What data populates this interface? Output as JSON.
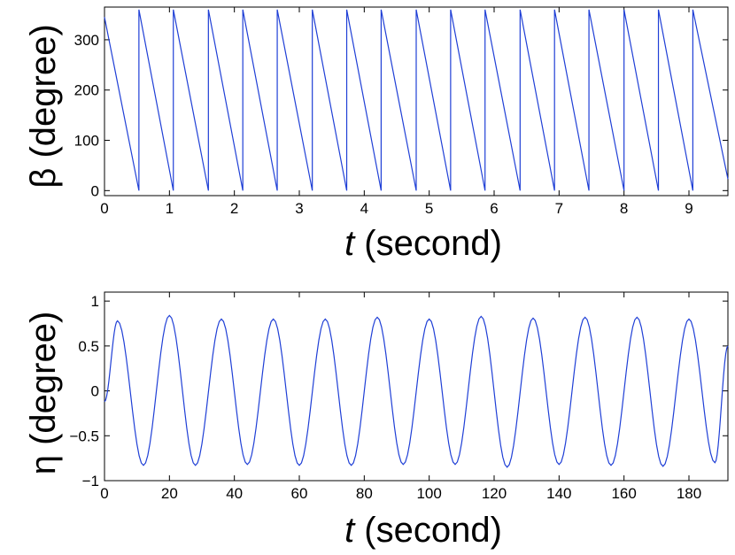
{
  "chart_data": [
    {
      "type": "line",
      "xlabel_italic": "t",
      "xlabel_rest": " (second)",
      "ylabel": "β (degree)",
      "xlim": [
        0,
        9.6
      ],
      "ylim": [
        -10,
        365
      ],
      "xticks": [
        0,
        1,
        2,
        3,
        4,
        5,
        6,
        7,
        8,
        9
      ],
      "xtick_labels": [
        "0",
        "1",
        "2",
        "3",
        "4",
        "5",
        "6",
        "7",
        "8",
        "9"
      ],
      "yticks": [
        0,
        100,
        200,
        300
      ],
      "ytick_labels": [
        "0",
        "100",
        "200",
        "300"
      ],
      "grid": false,
      "color": "#1f3fd6",
      "series": [
        {
          "x": [
            0,
            0.53,
            0.53,
            1.06,
            1.06,
            1.6,
            1.6,
            2.13,
            2.13,
            2.66,
            2.66,
            3.2,
            3.2,
            3.73,
            3.73,
            4.26,
            4.26,
            4.8,
            4.8,
            5.33,
            5.33,
            5.86,
            5.86,
            6.4,
            6.4,
            6.93,
            6.93,
            7.46,
            7.46,
            8.0,
            8.0,
            8.53,
            8.53,
            9.06,
            9.06,
            9.6
          ],
          "y": [
            345,
            0,
            360,
            0,
            360,
            0,
            360,
            0,
            360,
            0,
            360,
            0,
            360,
            0,
            360,
            0,
            360,
            0,
            360,
            0,
            360,
            0,
            360,
            0,
            360,
            0,
            360,
            0,
            360,
            0,
            360,
            0,
            360,
            0,
            360,
            23
          ]
        }
      ]
    },
    {
      "type": "line",
      "xlabel_italic": "t",
      "xlabel_rest": " (second)",
      "ylabel": "η (degree)",
      "xlim": [
        0,
        192
      ],
      "ylim": [
        -1,
        1.1
      ],
      "xticks": [
        0,
        20,
        40,
        60,
        80,
        100,
        120,
        140,
        160,
        180
      ],
      "xtick_labels": [
        "0",
        "20",
        "40",
        "60",
        "80",
        "100",
        "120",
        "140",
        "160",
        "180"
      ],
      "yticks": [
        1,
        0.5,
        0,
        -0.5,
        -1
      ],
      "ytick_labels": [
        "1",
        "0.5",
        "0",
        "−0.5",
        "−1"
      ],
      "grid": false,
      "color": "#1f3fd6",
      "series": [
        {
          "x": [
            0,
            4,
            12,
            20,
            28,
            36,
            44,
            52,
            60,
            68,
            76,
            84,
            92,
            100,
            108,
            116,
            124,
            132,
            140,
            148,
            156,
            164,
            172,
            180,
            188,
            192
          ],
          "y": [
            -0.12,
            0.78,
            -0.83,
            0.84,
            -0.83,
            0.8,
            -0.82,
            0.8,
            -0.83,
            0.8,
            -0.83,
            0.82,
            -0.82,
            0.8,
            -0.82,
            0.83,
            -0.85,
            0.81,
            -0.82,
            0.82,
            -0.83,
            0.82,
            -0.84,
            0.8,
            -0.8,
            0.5
          ]
        }
      ]
    }
  ]
}
